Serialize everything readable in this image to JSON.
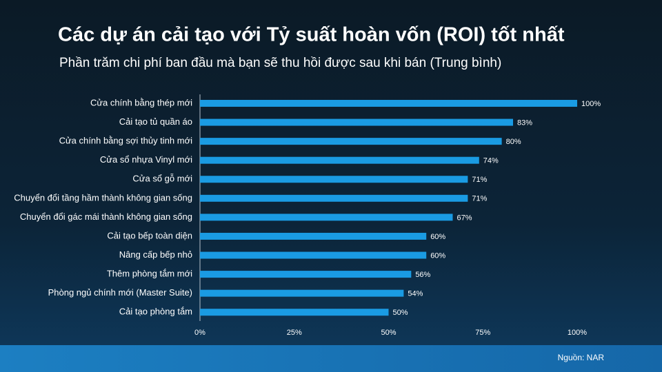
{
  "chart_data": {
    "type": "bar",
    "orientation": "horizontal",
    "title": "Các dự án cải tạo với Tỷ suất hoàn vốn (ROI) tốt nhất",
    "subtitle": "Phần trăm chi phí ban đầu mà bạn sẽ thu hồi được sau khi bán (Trung bình)",
    "categories": [
      "Cửa chính bằng thép mới",
      "Cải tạo tủ quần áo",
      "Cửa chính bằng sợi thủy tinh mới",
      "Cửa sổ nhựa Vinyl mới",
      "Cửa sổ gỗ mới",
      "Chuyển đổi tầng hầm thành không gian sống",
      "Chuyển đổi gác mái thành không gian sống",
      "Cải tạo bếp toàn diện",
      "Nâng cấp bếp nhỏ",
      "Thêm phòng tắm mới",
      "Phòng ngủ chính mới (Master Suite)",
      "Cải tạo phòng tắm"
    ],
    "values": [
      100,
      83,
      80,
      74,
      71,
      71,
      67,
      60,
      60,
      56,
      54,
      50
    ],
    "value_labels": [
      "100%",
      "83%",
      "80%",
      "74%",
      "71%",
      "71%",
      "67%",
      "60%",
      "60%",
      "56%",
      "54%",
      "50%"
    ],
    "color": "#1a9be3",
    "xlim": [
      0,
      100
    ],
    "xticks": [
      {
        "value": 0,
        "label": "0%"
      },
      {
        "value": 25,
        "label": "25%"
      },
      {
        "value": 50,
        "label": "50%"
      },
      {
        "value": 75,
        "label": "75%"
      },
      {
        "value": 100,
        "label": "100%"
      }
    ],
    "grid": false,
    "source": "Nguồn: NAR"
  }
}
